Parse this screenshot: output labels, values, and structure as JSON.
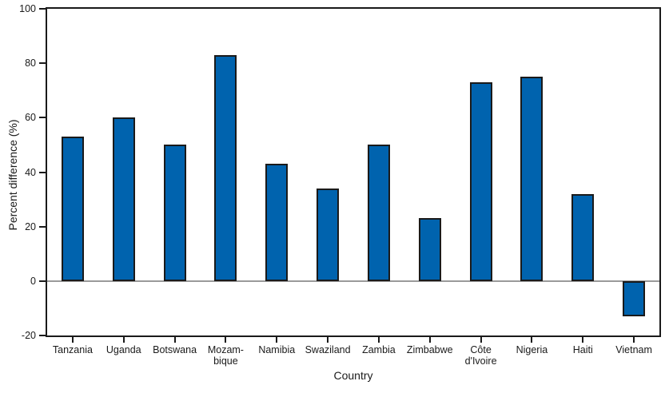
{
  "chart_data": {
    "type": "bar",
    "title": "",
    "xlabel": "Country",
    "ylabel": "Percent difference (%)",
    "categories": [
      "Tanzania",
      "Uganda",
      "Botswana",
      "Mozambique",
      "Namibia",
      "Swaziland",
      "Zambia",
      "Zimbabwe",
      "Côte d'Ivoire",
      "Nigeria",
      "Haiti",
      "Vietnam"
    ],
    "tick_labels": [
      "Tanzania",
      "Uganda",
      "Botswana",
      "Mozam-\nbique",
      "Namibia",
      "Swaziland",
      "Zambia",
      "Zimbabwe",
      "Côte\nd'Ivoire",
      "Nigeria",
      "Haiti",
      "Vietnam"
    ],
    "values": [
      53,
      60,
      50,
      83,
      43,
      34,
      50,
      23,
      73,
      75,
      32,
      -13
    ],
    "ylim": [
      -20,
      100
    ],
    "yticks": [
      100,
      80,
      60,
      40,
      20,
      0,
      -20
    ],
    "grid": false,
    "legend_position": "none",
    "colors": {
      "bar_fill": "#0063ae",
      "bar_border": "#1a1a1a",
      "axis": "#1a1a1a",
      "zero_line": "#9a9a9a",
      "text": "#1a1a1a"
    }
  }
}
